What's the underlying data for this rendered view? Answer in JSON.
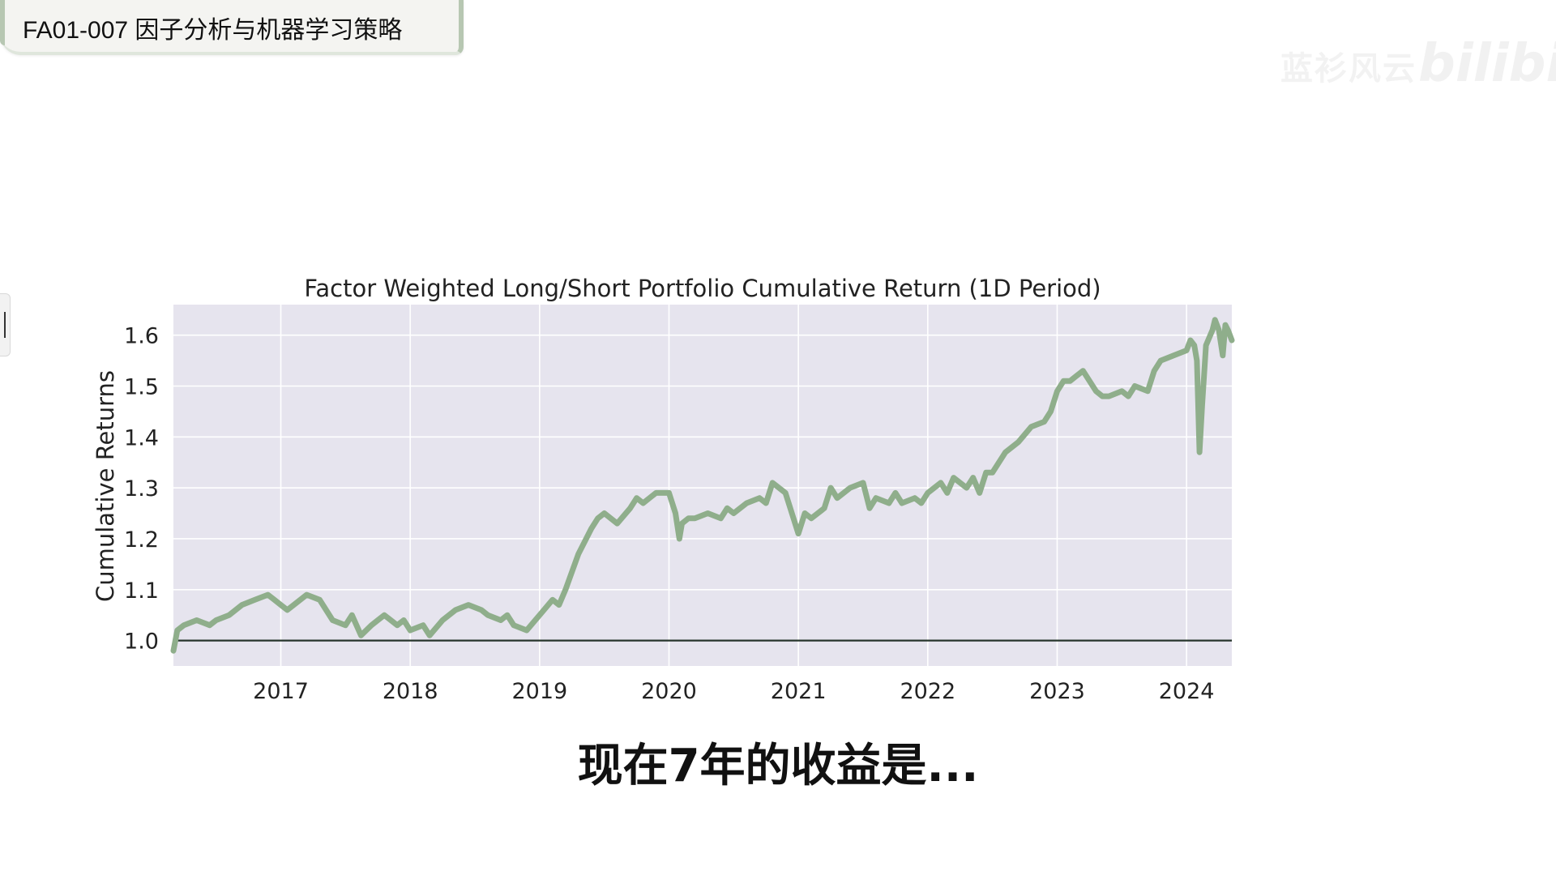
{
  "video": {
    "title": "FA01-007 因子分析与机器学习策略",
    "caption": "现在7年的收益是...",
    "watermark_text": "蓝衫风云",
    "watermark_logo": "bilibili"
  },
  "chart_data": {
    "type": "line",
    "title": "Factor Weighted Long/Short Portfolio Cumulative Return (1D Period)",
    "xlabel": "",
    "ylabel": "Cumulative Returns",
    "x_ticks": [
      "2017",
      "2018",
      "2019",
      "2020",
      "2021",
      "2022",
      "2023",
      "2024"
    ],
    "y_ticks": [
      "1.0",
      "1.1",
      "1.2",
      "1.3",
      "1.4",
      "1.5",
      "1.6"
    ],
    "xlim": [
      2016.17,
      2024.35
    ],
    "ylim": [
      0.95,
      1.66
    ],
    "grid": true,
    "reference_line": 1.0,
    "line_color": "#8fae8b",
    "plot_background": "#e6e4ee",
    "series": [
      {
        "name": "",
        "x": [
          2016.17,
          2016.2,
          2016.25,
          2016.35,
          2016.45,
          2016.5,
          2016.6,
          2016.7,
          2016.8,
          2016.9,
          2016.95,
          2017.0,
          2017.05,
          2017.1,
          2017.2,
          2017.3,
          2017.4,
          2017.5,
          2017.55,
          2017.62,
          2017.7,
          2017.8,
          2017.9,
          2017.95,
          2018.0,
          2018.1,
          2018.15,
          2018.25,
          2018.35,
          2018.45,
          2018.55,
          2018.6,
          2018.7,
          2018.75,
          2018.8,
          2018.9,
          2019.0,
          2019.1,
          2019.15,
          2019.2,
          2019.3,
          2019.4,
          2019.45,
          2019.5,
          2019.6,
          2019.7,
          2019.75,
          2019.8,
          2019.85,
          2019.9,
          2019.95,
          2020.0,
          2020.05,
          2020.08,
          2020.1,
          2020.15,
          2020.2,
          2020.3,
          2020.4,
          2020.45,
          2020.5,
          2020.6,
          2020.7,
          2020.75,
          2020.8,
          2020.9,
          2021.0,
          2021.05,
          2021.1,
          2021.2,
          2021.25,
          2021.3,
          2021.4,
          2021.5,
          2021.55,
          2021.6,
          2021.7,
          2021.75,
          2021.8,
          2021.9,
          2021.95,
          2022.0,
          2022.05,
          2022.1,
          2022.15,
          2022.2,
          2022.3,
          2022.35,
          2022.4,
          2022.45,
          2022.5,
          2022.6,
          2022.7,
          2022.8,
          2022.9,
          2022.95,
          2023.0,
          2023.05,
          2023.1,
          2023.15,
          2023.2,
          2023.25,
          2023.3,
          2023.35,
          2023.4,
          2023.5,
          2023.55,
          2023.6,
          2023.7,
          2023.75,
          2023.8,
          2023.9,
          2024.0,
          2024.03,
          2024.06,
          2024.08,
          2024.1,
          2024.12,
          2024.15,
          2024.2,
          2024.22,
          2024.25,
          2024.28,
          2024.3,
          2024.32,
          2024.35
        ],
        "y": [
          0.98,
          1.02,
          1.03,
          1.04,
          1.03,
          1.04,
          1.05,
          1.07,
          1.08,
          1.09,
          1.08,
          1.07,
          1.06,
          1.07,
          1.09,
          1.08,
          1.04,
          1.03,
          1.05,
          1.01,
          1.03,
          1.05,
          1.03,
          1.04,
          1.02,
          1.03,
          1.01,
          1.04,
          1.06,
          1.07,
          1.06,
          1.05,
          1.04,
          1.05,
          1.03,
          1.02,
          1.05,
          1.08,
          1.07,
          1.1,
          1.17,
          1.22,
          1.24,
          1.25,
          1.23,
          1.26,
          1.28,
          1.27,
          1.28,
          1.29,
          1.29,
          1.29,
          1.25,
          1.2,
          1.23,
          1.24,
          1.24,
          1.25,
          1.24,
          1.26,
          1.25,
          1.27,
          1.28,
          1.27,
          1.31,
          1.29,
          1.21,
          1.25,
          1.24,
          1.26,
          1.3,
          1.28,
          1.3,
          1.31,
          1.26,
          1.28,
          1.27,
          1.29,
          1.27,
          1.28,
          1.27,
          1.29,
          1.3,
          1.31,
          1.29,
          1.32,
          1.3,
          1.32,
          1.29,
          1.33,
          1.33,
          1.37,
          1.39,
          1.42,
          1.43,
          1.45,
          1.49,
          1.51,
          1.51,
          1.52,
          1.53,
          1.51,
          1.49,
          1.48,
          1.48,
          1.49,
          1.48,
          1.5,
          1.49,
          1.53,
          1.55,
          1.56,
          1.57,
          1.59,
          1.58,
          1.55,
          1.37,
          1.46,
          1.58,
          1.61,
          1.63,
          1.61,
          1.56,
          1.62,
          1.61,
          1.59
        ]
      }
    ]
  }
}
